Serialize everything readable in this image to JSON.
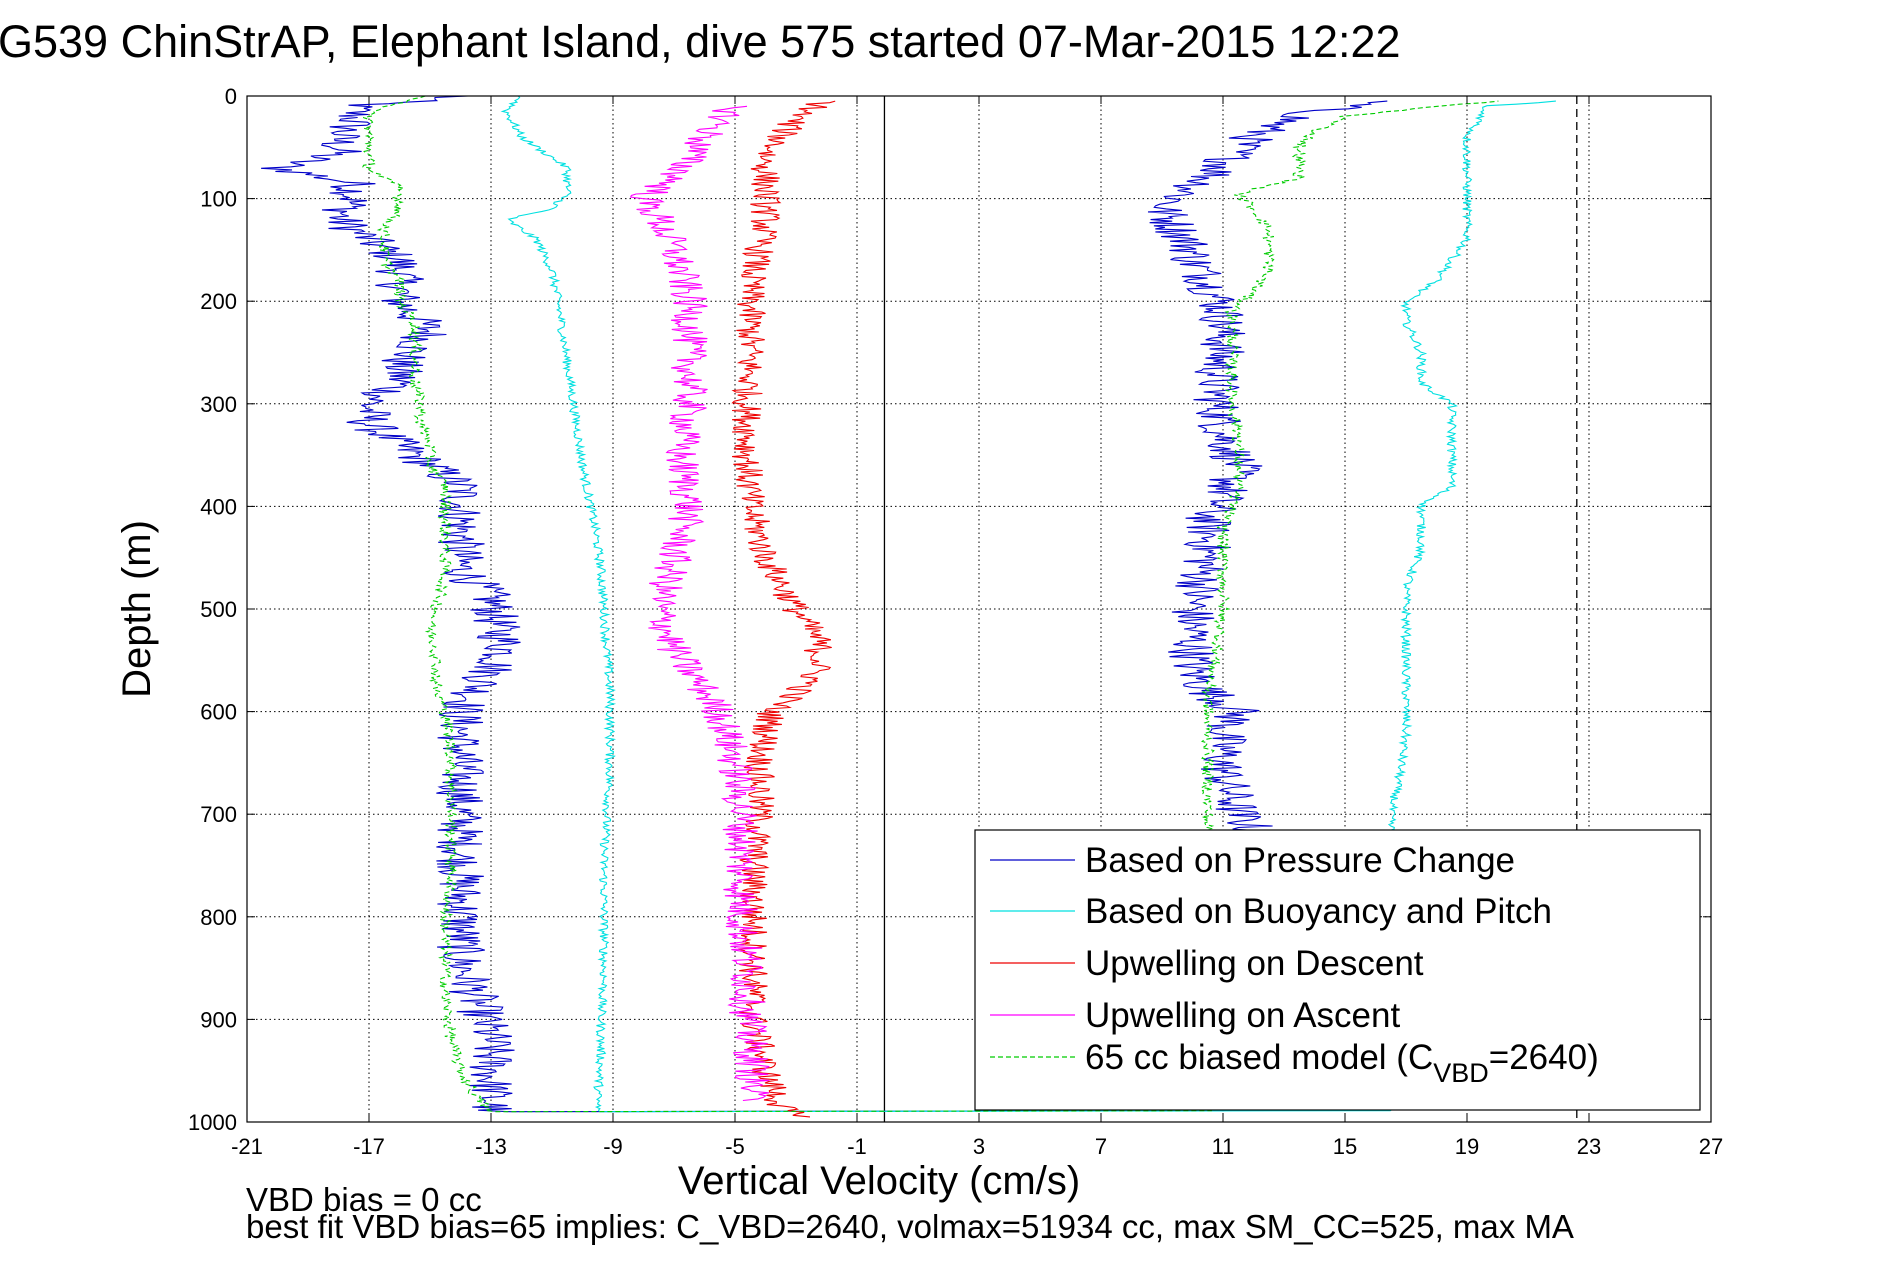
{
  "chart_data": {
    "type": "line",
    "title": "G539 ChinStrAP, Elephant Island, dive 575 started 07-Mar-2015 12:22",
    "xlabel": "Vertical Velocity (cm/s)",
    "ylabel": "Depth (m)",
    "xlim": [
      -21,
      27
    ],
    "ylim": [
      0,
      1000
    ],
    "y_reversed": true,
    "xticks": [
      "-21",
      "-17",
      "-13",
      "-9",
      "-5",
      "-1",
      "3",
      "7",
      "11",
      "15",
      "19",
      "23",
      "27"
    ],
    "yticks": [
      "0",
      "100",
      "200",
      "300",
      "400",
      "500",
      "600",
      "700",
      "800",
      "900",
      "1000"
    ],
    "grid": true,
    "legend_position": "bottom-right",
    "reference_lines": [
      {
        "x": -0.1,
        "style": "solid",
        "color": "#000000"
      },
      {
        "x": 22.6,
        "style": "dashed",
        "color": "#000000"
      }
    ],
    "series": [
      {
        "name": "Based on Pressure Change",
        "color": "#0000c8",
        "style": "solid",
        "noise": 0.8,
        "descent": {
          "depth": [
            0,
            10,
            25,
            40,
            55,
            70,
            85,
            100,
            120,
            140,
            160,
            180,
            200,
            230,
            260,
            280,
            300,
            320,
            340,
            360,
            380,
            400,
            430,
            460,
            490,
            520,
            540,
            560,
            580,
            600,
            640,
            680,
            720,
            760,
            800,
            840,
            880,
            920,
            950,
            975,
            990
          ],
          "velocity": [
            -14,
            -17.5,
            -17.5,
            -18,
            -18,
            -20,
            -17.5,
            -17.5,
            -18,
            -17,
            -16,
            -16,
            -16,
            -15,
            -16,
            -16,
            -17,
            -17,
            -16,
            -15,
            -14,
            -14,
            -14,
            -14,
            -13,
            -12.8,
            -12.5,
            -13,
            -13.5,
            -14,
            -14,
            -14,
            -14,
            -14,
            -14,
            -14,
            -13.5,
            -13,
            -13,
            -13,
            -13
          ]
        },
        "ascent": {
          "depth": [
            990,
            960,
            930,
            900,
            860,
            820,
            780,
            740,
            715,
            700,
            660,
            620,
            600,
            580,
            560,
            540,
            520,
            500,
            470,
            440,
            410,
            390,
            360,
            330,
            300,
            270,
            240,
            210,
            180,
            160,
            150,
            130,
            110,
            90,
            70,
            50,
            30,
            15,
            5
          ],
          "velocity": [
            11,
            11,
            11,
            11,
            11,
            11,
            11,
            11.5,
            12,
            11.5,
            11,
            11,
            11.5,
            10.5,
            10,
            10,
            10,
            10,
            10.3,
            10.5,
            10.5,
            11,
            11.5,
            11,
            10.8,
            10.8,
            11,
            11,
            10.5,
            10,
            10,
            9.5,
            9,
            10,
            11,
            11.5,
            12.5,
            14,
            16
          ]
        }
      },
      {
        "name": "Based on Buoyancy and Pitch",
        "color": "#00e0e0",
        "style": "solid",
        "noise": 0.15,
        "descent": {
          "depth": [
            0,
            15,
            40,
            70,
            95,
            110,
            120,
            140,
            170,
            200,
            240,
            280,
            320,
            360,
            390,
            420,
            460,
            500,
            540,
            580,
            620,
            660,
            700,
            740,
            780,
            820,
            860,
            900,
            940,
            975,
            990
          ],
          "velocity": [
            -12,
            -12.5,
            -12,
            -10.5,
            -10.5,
            -11,
            -12.5,
            -11.5,
            -11,
            -10.8,
            -10.6,
            -10.4,
            -10.2,
            -10,
            -9.8,
            -9.6,
            -9.4,
            -9.3,
            -9.2,
            -9.1,
            -9.1,
            -9.1,
            -9.2,
            -9.3,
            -9.3,
            -9.3,
            -9.3,
            -9.4,
            -9.4,
            -9.5,
            -9.5
          ]
        },
        "ascent": {
          "depth": [
            990,
            960,
            920,
            880,
            840,
            800,
            760,
            720,
            700,
            660,
            620,
            600,
            560,
            520,
            480,
            440,
            420,
            400,
            380,
            360,
            340,
            320,
            300,
            280,
            250,
            220,
            200,
            180,
            160,
            140,
            120,
            100,
            80,
            60,
            40,
            20,
            10,
            5
          ],
          "velocity": [
            16.5,
            16.5,
            16.5,
            16.5,
            16.5,
            16.5,
            16.5,
            16.5,
            16.5,
            16.8,
            17,
            17,
            17,
            17,
            17,
            17.5,
            17.5,
            17.5,
            18.5,
            18.5,
            18.5,
            18.5,
            18.5,
            17.5,
            17.5,
            17,
            17,
            18,
            18.5,
            19,
            19,
            19,
            19,
            19,
            19,
            19.5,
            19.5,
            22
          ]
        }
      },
      {
        "name": "Upwelling on Descent",
        "color": "#ee0000",
        "style": "solid",
        "noise": 0.5,
        "depth": [
          5,
          20,
          40,
          60,
          80,
          100,
          120,
          150,
          180,
          200,
          250,
          300,
          350,
          400,
          450,
          500,
          530,
          550,
          570,
          600,
          650,
          700,
          750,
          800,
          850,
          900,
          950,
          985,
          995
        ],
        "velocity": [
          -2,
          -3,
          -3.5,
          -4,
          -4,
          -4,
          -4,
          -4.2,
          -4.5,
          -4.5,
          -4.5,
          -4.6,
          -4.6,
          -4.5,
          -4,
          -3,
          -2.3,
          -2.2,
          -2.5,
          -3.8,
          -4.2,
          -4.2,
          -4.4,
          -4.4,
          -4.4,
          -4.4,
          -4,
          -3.5,
          -3
        ]
      },
      {
        "name": "Upwelling on Ascent",
        "color": "#ff00ff",
        "style": "solid",
        "noise": 0.6,
        "depth": [
          10,
          40,
          80,
          100,
          120,
          150,
          200,
          250,
          300,
          350,
          400,
          450,
          500,
          540,
          560,
          600,
          650,
          700,
          750,
          800,
          850,
          900,
          950,
          980
        ],
        "velocity": [
          -5,
          -6,
          -7,
          -8,
          -7.5,
          -7,
          -6.5,
          -6.5,
          -6.5,
          -6.8,
          -6.5,
          -7,
          -7.5,
          -7,
          -6.5,
          -5.5,
          -5,
          -4.8,
          -4.8,
          -4.8,
          -4.6,
          -4.6,
          -4.4,
          -4.5
        ]
      },
      {
        "name": "65 cc biased model (C_VBD=2640)",
        "legend_main": "65 cc biased model (C",
        "legend_sub": "VBD",
        "legend_tail": "=2640)",
        "color": "#00cc00",
        "style": "dashed",
        "noise": 0.2,
        "descent": {
          "depth": [
            0,
            15,
            40,
            70,
            90,
            110,
            130,
            160,
            180,
            200,
            220,
            240,
            260,
            280,
            300,
            320,
            340,
            360,
            380,
            400,
            430,
            460,
            490,
            520,
            540,
            560,
            580,
            600,
            640,
            680,
            720,
            760,
            800,
            840,
            880,
            920,
            950,
            975,
            990
          ],
          "velocity": [
            -15,
            -17,
            -17,
            -17,
            -16,
            -16,
            -16.5,
            -16.5,
            -16,
            -16,
            -15.5,
            -15.5,
            -15.5,
            -15.5,
            -15.3,
            -15.3,
            -15,
            -15,
            -14.5,
            -14.5,
            -14.5,
            -14.5,
            -14.7,
            -15,
            -14.8,
            -14.8,
            -14.8,
            -14.5,
            -14.3,
            -14.3,
            -14.3,
            -14.3,
            -14.5,
            -14.5,
            -14.5,
            -14.3,
            -14,
            -13.5,
            -13
          ]
        },
        "ascent": {
          "depth": [
            990,
            960,
            920,
            880,
            840,
            800,
            760,
            720,
            700,
            660,
            620,
            580,
            540,
            500,
            460,
            420,
            400,
            380,
            360,
            330,
            300,
            270,
            240,
            210,
            190,
            170,
            150,
            130,
            110,
            95,
            80,
            65,
            50,
            35,
            20,
            10,
            5
          ],
          "velocity": [
            10.5,
            10.5,
            10.5,
            10.5,
            10.5,
            10.5,
            10.5,
            10.5,
            10.5,
            10.5,
            10.5,
            10.5,
            10.8,
            11,
            11,
            11,
            11.3,
            11.5,
            11.5,
            11.5,
            11.3,
            11.3,
            11.3,
            11.3,
            12,
            12.5,
            12.5,
            12.5,
            12,
            11.5,
            13.5,
            13.5,
            13.5,
            14,
            15,
            18,
            20
          ]
        }
      }
    ],
    "footer_lines": [
      "VBD bias = 0 cc",
      "best fit VBD bias=65 implies: C_VBD=2640, volmax=51934 cc, max SM_CC=525, max MA"
    ]
  }
}
